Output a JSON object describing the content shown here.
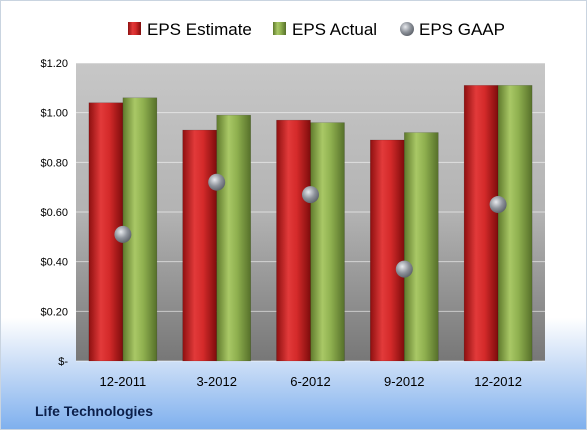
{
  "company": "Life Technologies",
  "chart_data": {
    "type": "bar",
    "title": "",
    "categories": [
      "12-2011",
      "3-2012",
      "6-2012",
      "9-2012",
      "12-2012"
    ],
    "series": [
      {
        "name": "EPS Estimate",
        "kind": "bar",
        "color": "#d42a2a",
        "values": [
          1.04,
          0.93,
          0.97,
          0.89,
          1.11
        ]
      },
      {
        "name": "EPS Actual",
        "kind": "bar",
        "color": "#8fb04f",
        "values": [
          1.06,
          0.99,
          0.96,
          0.92,
          1.11
        ]
      },
      {
        "name": "EPS GAAP",
        "kind": "marker",
        "color": "#9aa0a8",
        "values": [
          0.51,
          0.72,
          0.67,
          0.37,
          0.63
        ]
      }
    ],
    "ylim": [
      0,
      1.2
    ],
    "yticks": [
      0,
      0.2,
      0.4,
      0.6,
      0.8,
      1.0,
      1.2
    ],
    "ytick_labels": [
      "$-",
      "$0.20",
      "$0.40",
      "$0.60",
      "$0.80",
      "$1.00",
      "$1.20"
    ],
    "grid": true,
    "legend_position": "top"
  }
}
